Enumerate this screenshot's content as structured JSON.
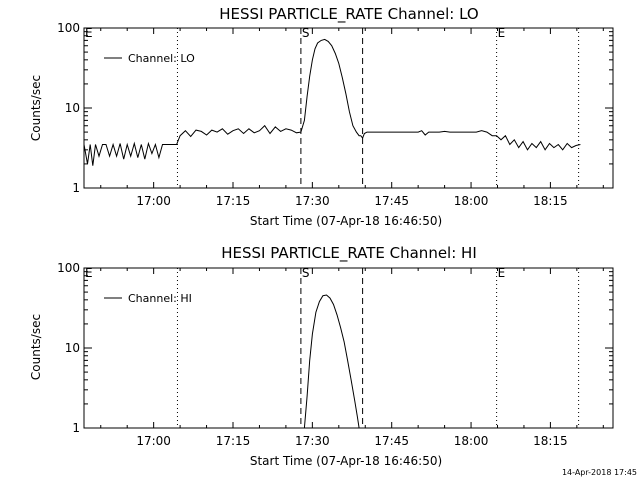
{
  "footer": "14-Apr-2018 17:45",
  "colors": {
    "line": "#000000",
    "background": "#ffffff"
  },
  "chart_data": [
    {
      "type": "line",
      "title": "HESSI PARTICLE_RATE Channel: LO",
      "xlabel": "Start Time (07-Apr-18 16:46:50)",
      "ylabel": "Counts/sec",
      "yscale": "log",
      "ylim": [
        1,
        100
      ],
      "xlim": [
        "16:46:50",
        "18:26:50"
      ],
      "x_ticks": [
        "17:00",
        "17:15",
        "17:30",
        "17:45",
        "18:00",
        "18:15"
      ],
      "y_ticks": [
        "1",
        "10",
        "100"
      ],
      "legend": {
        "position": "top-left",
        "entries": [
          "Channel: LO"
        ]
      },
      "markers": [
        {
          "time": "16:46:50",
          "label": "E",
          "style": "dotted"
        },
        {
          "time": "17:04:30",
          "label": "",
          "style": "dotted"
        },
        {
          "time": "17:27:50",
          "label": "S",
          "style": "dashed"
        },
        {
          "time": "17:39:30",
          "label": "",
          "style": "dashed"
        },
        {
          "time": "18:04:50",
          "label": "E",
          "style": "dotted"
        },
        {
          "time": "18:20:20",
          "label": "",
          "style": "dotted"
        }
      ],
      "series": [
        {
          "name": "Channel: LO",
          "x": [
            "16:46:50",
            "16:47:30",
            "16:48:00",
            "16:48:30",
            "16:49:00",
            "16:49:40",
            "16:50:20",
            "16:51:00",
            "16:51:40",
            "16:52:20",
            "16:53:00",
            "16:53:40",
            "16:54:20",
            "16:55:00",
            "16:55:40",
            "16:56:20",
            "16:57:00",
            "16:57:40",
            "16:58:20",
            "16:59:00",
            "16:59:40",
            "17:00:20",
            "17:01:00",
            "17:01:40",
            "17:02:20",
            "17:03:00",
            "17:03:40",
            "17:04:20",
            "17:05:00",
            "17:06:00",
            "17:07:00",
            "17:08:00",
            "17:09:00",
            "17:10:00",
            "17:11:00",
            "17:12:00",
            "17:13:00",
            "17:14:00",
            "17:15:00",
            "17:16:00",
            "17:17:00",
            "17:18:00",
            "17:19:00",
            "17:20:00",
            "17:21:00",
            "17:22:00",
            "17:23:00",
            "17:24:00",
            "17:25:00",
            "17:26:00",
            "17:27:00",
            "17:27:50",
            "17:28:30",
            "17:29:00",
            "17:29:30",
            "17:30:00",
            "17:30:30",
            "17:31:00",
            "17:31:40",
            "17:32:20",
            "17:33:00",
            "17:33:40",
            "17:34:20",
            "17:35:00",
            "17:35:40",
            "17:36:20",
            "17:37:00",
            "17:37:40",
            "17:38:20",
            "17:38:50",
            "17:39:10",
            "17:39:30",
            "17:39:50",
            "17:40:20",
            "17:41:00",
            "17:42:00",
            "17:43:00",
            "17:44:00",
            "17:45:00",
            "17:46:00",
            "17:47:00",
            "17:48:00",
            "17:49:00",
            "17:50:00",
            "17:50:40",
            "17:51:20",
            "17:52:00",
            "17:53:00",
            "17:54:00",
            "17:55:00",
            "17:56:00",
            "17:57:00",
            "17:58:00",
            "17:59:00",
            "18:00:00",
            "18:01:00",
            "18:02:00",
            "18:03:00",
            "18:04:00",
            "18:04:50",
            "18:05:40",
            "18:06:30",
            "18:07:20",
            "18:08:10",
            "18:09:00",
            "18:09:50",
            "18:10:40",
            "18:11:30",
            "18:12:20",
            "18:13:10",
            "18:14:00",
            "18:14:50",
            "18:15:40",
            "18:16:30",
            "18:17:20",
            "18:18:10",
            "18:19:00",
            "18:19:50",
            "18:20:40"
          ],
          "values": [
            3.5,
            2.0,
            3.5,
            1.9,
            3.5,
            2.5,
            3.5,
            3.5,
            2.5,
            3.5,
            2.5,
            3.6,
            2.3,
            3.5,
            2.5,
            3.6,
            2.4,
            3.5,
            2.3,
            3.6,
            2.7,
            3.5,
            2.4,
            3.5,
            3.5,
            3.5,
            3.5,
            3.5,
            4.5,
            5.2,
            4.4,
            5.3,
            5.1,
            4.6,
            5.3,
            5.0,
            5.5,
            4.7,
            5.2,
            5.5,
            4.8,
            5.5,
            4.9,
            5.2,
            6.0,
            4.8,
            5.8,
            5.1,
            5.5,
            5.3,
            4.9,
            5.0,
            7.0,
            14,
            25,
            40,
            55,
            65,
            70,
            72,
            68,
            60,
            48,
            36,
            24,
            15,
            9,
            6,
            5,
            4.5,
            4.5,
            4.2,
            4.8,
            5.0,
            5.0,
            5.0,
            5.0,
            5.0,
            5.0,
            5.0,
            5.0,
            5.0,
            5.0,
            5.0,
            5.2,
            4.6,
            5.0,
            5.0,
            5.0,
            5.1,
            5.0,
            5.0,
            5.0,
            5.0,
            5.0,
            5.0,
            5.2,
            5.0,
            4.5,
            4.5,
            4.0,
            4.5,
            3.5,
            4.0,
            3.2,
            3.8,
            3.0,
            3.6,
            3.2,
            3.8,
            3.0,
            3.6,
            3.2,
            3.5,
            3.0,
            3.6,
            3.2,
            3.4,
            3.5
          ]
        }
      ]
    },
    {
      "type": "line",
      "title": "HESSI PARTICLE_RATE Channel: HI",
      "xlabel": "Start Time (07-Apr-18 16:46:50)",
      "ylabel": "Counts/sec",
      "yscale": "log",
      "ylim": [
        1,
        100
      ],
      "xlim": [
        "16:46:50",
        "18:26:50"
      ],
      "x_ticks": [
        "17:00",
        "17:15",
        "17:30",
        "17:45",
        "18:00",
        "18:15"
      ],
      "y_ticks": [
        "1",
        "10",
        "100"
      ],
      "legend": {
        "position": "top-left",
        "entries": [
          "Channel: HI"
        ]
      },
      "markers": [
        {
          "time": "16:46:50",
          "label": "E",
          "style": "dotted"
        },
        {
          "time": "17:04:30",
          "label": "",
          "style": "dotted"
        },
        {
          "time": "17:27:50",
          "label": "S",
          "style": "dashed"
        },
        {
          "time": "17:39:30",
          "label": "",
          "style": "dashed"
        },
        {
          "time": "18:04:50",
          "label": "E",
          "style": "dotted"
        },
        {
          "time": "18:20:20",
          "label": "",
          "style": "dotted"
        }
      ],
      "series": [
        {
          "name": "Channel: HI",
          "x": [
            "17:28:30",
            "17:29:00",
            "17:29:30",
            "17:30:00",
            "17:30:40",
            "17:31:20",
            "17:32:00",
            "17:32:40",
            "17:33:20",
            "17:34:00",
            "17:34:40",
            "17:35:20",
            "17:36:00",
            "17:36:40",
            "17:37:20",
            "17:38:00",
            "17:38:30",
            "17:38:50"
          ],
          "values": [
            1.0,
            2.5,
            7,
            15,
            28,
            38,
            45,
            46,
            42,
            35,
            26,
            18,
            12,
            7,
            4,
            2.2,
            1.4,
            1.0
          ]
        }
      ]
    }
  ]
}
